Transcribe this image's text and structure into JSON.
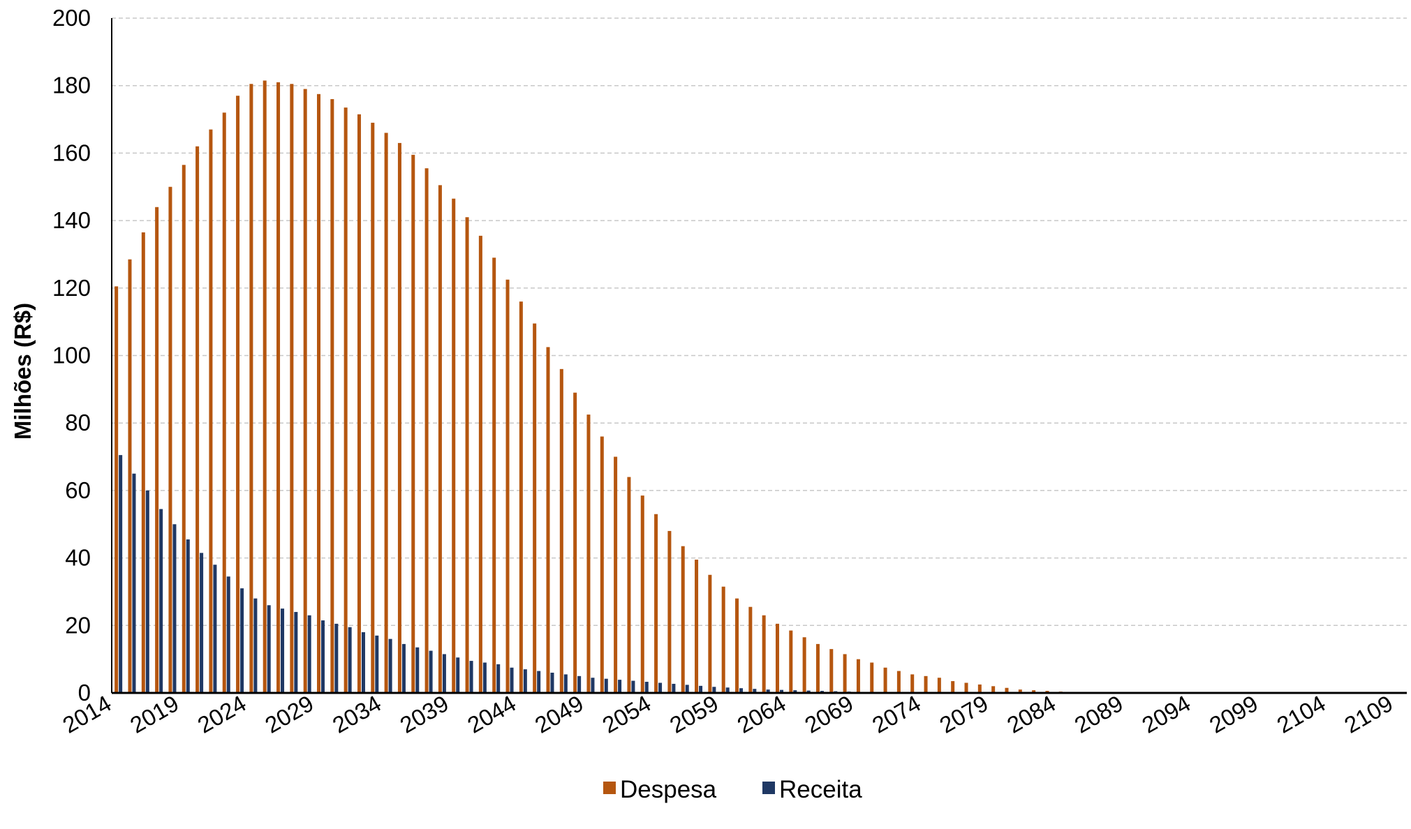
{
  "chart_data": {
    "type": "bar",
    "title": "",
    "xlabel": "",
    "ylabel": "Milhões (R$)",
    "ylim": [
      0,
      200
    ],
    "yticks": [
      0,
      20,
      40,
      60,
      80,
      100,
      120,
      140,
      160,
      180,
      200
    ],
    "grid": true,
    "legend_position": "bottom",
    "x_start": 2014,
    "x_end": 2109,
    "x_tick_labels": [
      "2014",
      "2019",
      "2024",
      "2029",
      "2034",
      "2039",
      "2044",
      "2049",
      "2054",
      "2059",
      "2064",
      "2069",
      "2074",
      "2079",
      "2084",
      "2089",
      "2094",
      "2099",
      "2104",
      "2109"
    ],
    "series": [
      {
        "name": "Despesa",
        "color": "#b5560f",
        "values": [
          120.5,
          128.5,
          136.5,
          144,
          150,
          156.5,
          162,
          167,
          172,
          177,
          180.5,
          181.5,
          181,
          180.5,
          179,
          177.5,
          176,
          173.5,
          171.5,
          169,
          166,
          163,
          159.5,
          155.5,
          150.5,
          146.5,
          141,
          135.5,
          129,
          122.5,
          116,
          109.5,
          102.5,
          96,
          89,
          82.5,
          76,
          70,
          64,
          58.5,
          53,
          48,
          43.5,
          39.5,
          35,
          31.5,
          28,
          25.5,
          23,
          20.5,
          18.5,
          16.5,
          14.5,
          13,
          11.5,
          10,
          9,
          7.5,
          6.5,
          5.5,
          5,
          4.5,
          3.5,
          3,
          2.5,
          2,
          1.5,
          1,
          0.8,
          0.6,
          0.4,
          0.2,
          0,
          0,
          0,
          0,
          0,
          0,
          0,
          0,
          0,
          0,
          0,
          0,
          0,
          0,
          0,
          0,
          0,
          0,
          0,
          0,
          0,
          0,
          0,
          0
        ]
      },
      {
        "name": "Receita",
        "color": "#1f3864",
        "values": [
          70.5,
          65,
          60,
          54.5,
          50,
          45.5,
          41.5,
          38,
          34.5,
          31,
          28,
          26,
          25,
          24,
          23,
          21.5,
          20.5,
          19.5,
          18,
          17,
          16,
          14.5,
          13.5,
          12.5,
          11.5,
          10.5,
          9.5,
          9,
          8.5,
          7.5,
          7,
          6.5,
          6,
          5.5,
          5,
          4.5,
          4.2,
          3.9,
          3.6,
          3.3,
          3,
          2.7,
          2.4,
          2.1,
          1.8,
          1.6,
          1.4,
          1.2,
          1,
          0.9,
          0.8,
          0.7,
          0.6,
          0.5,
          0.4,
          0.3,
          0.2,
          0.1,
          0,
          0,
          0,
          0,
          0,
          0,
          0,
          0,
          0,
          0,
          0,
          0,
          0,
          0,
          0,
          0,
          0,
          0,
          0,
          0,
          0,
          0,
          0,
          0,
          0,
          0,
          0,
          0,
          0,
          0,
          0,
          0,
          0,
          0,
          0,
          0,
          0,
          0
        ]
      }
    ]
  }
}
